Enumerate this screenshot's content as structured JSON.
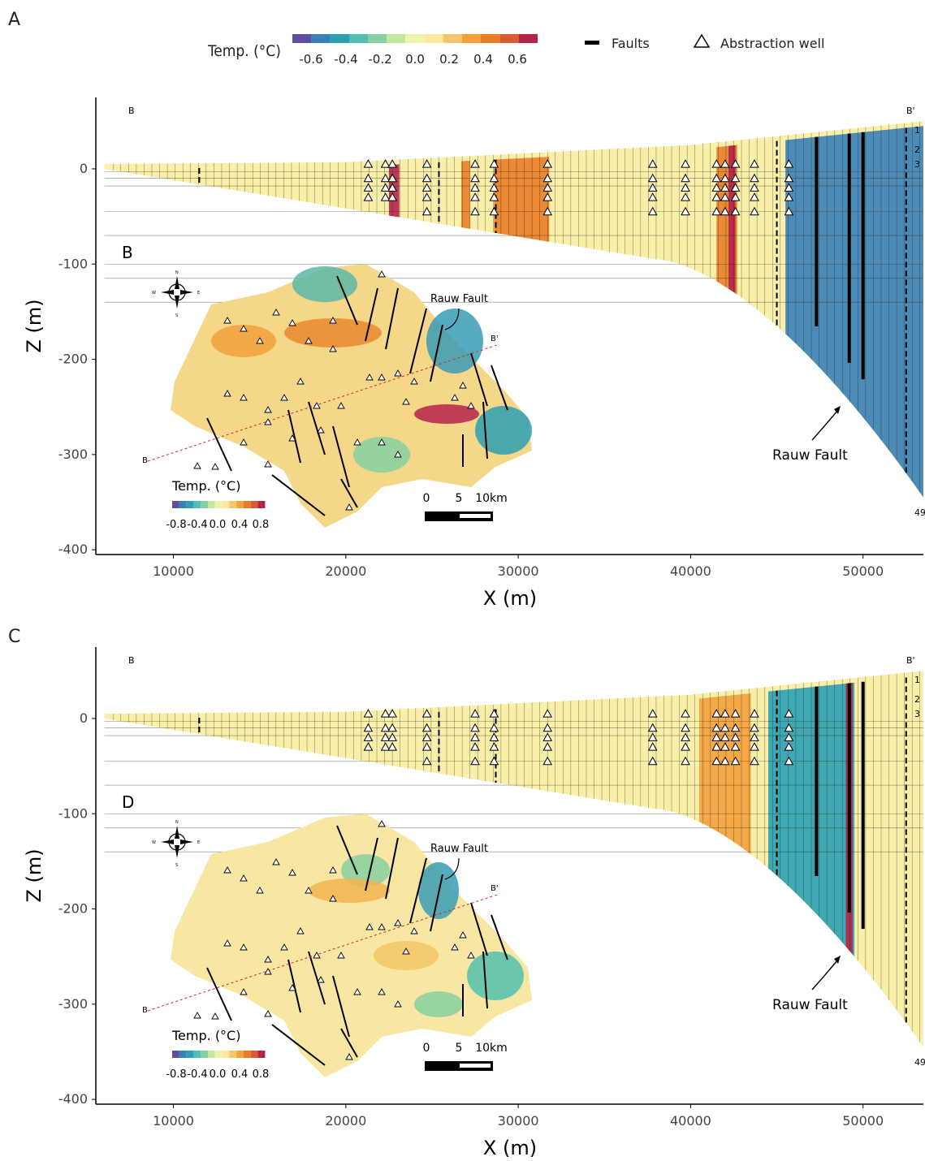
{
  "panels": {
    "a": "A",
    "b": "B",
    "c": "C",
    "d": "D"
  },
  "legend": {
    "temp_title": "Temp. (°C)",
    "temp_ticks": [
      "-0.6",
      "-0.4",
      "-0.2",
      "0.0",
      "0.2",
      "0.4",
      "0.6"
    ],
    "faults_label": "Faults",
    "well_label": "Abstraction well",
    "palette": [
      "#5d4f9f",
      "#3a7fb8",
      "#2ba0b3",
      "#53bfb0",
      "#86d0a2",
      "#c2e7a0",
      "#eef3b0",
      "#fae7a2",
      "#f8c66a",
      "#f2a13c",
      "#e97d27",
      "#d95b30",
      "#b5234b"
    ]
  },
  "inset_legend": {
    "title": "Temp. (°C)",
    "ticks": [
      "-0.8",
      "-0.4",
      "0.0",
      "0.4",
      "0.8"
    ]
  },
  "scalebar": {
    "ticks": [
      "0",
      "5",
      "10km"
    ]
  },
  "compass": {
    "n": "N",
    "s": "S",
    "e": "E",
    "w": "W"
  },
  "annotations": {
    "rauw_fault": "Rauw Fault",
    "section_start": "B",
    "section_end": "B'",
    "layer_labels": [
      "1",
      "2",
      "3",
      "49"
    ]
  },
  "chart_data": [
    {
      "type": "heatmap",
      "panel": "A",
      "xlabel": "X (m)",
      "ylabel": "Z (m)",
      "xlim": [
        5500,
        53500
      ],
      "ylim": [
        -405,
        75
      ],
      "x_ticks": [
        10000,
        20000,
        30000,
        40000,
        50000
      ],
      "y_ticks": [
        0,
        -100,
        -200,
        -300,
        -400
      ],
      "well_x": [
        21300,
        22300,
        22700,
        24700,
        27500,
        28600,
        31700,
        37800,
        39700,
        41500,
        42000,
        42600,
        43700,
        45700
      ],
      "fault_x": [
        47300,
        49200,
        50000
      ],
      "inset_fault_dashed_x": [
        11500,
        25400,
        28700,
        45000,
        52500
      ],
      "anomalies": [
        {
          "x": [
            22500,
            23100
          ],
          "value": 0.7
        },
        {
          "x": [
            26700,
            27200
          ],
          "value": 0.5
        },
        {
          "x": [
            28600,
            31800
          ],
          "value": 0.45
        },
        {
          "x": [
            41500,
            42700
          ],
          "value": 0.55
        },
        {
          "x": [
            42200,
            42600
          ],
          "value": 0.7
        },
        {
          "x": [
            45500,
            53500
          ],
          "value": -0.6
        }
      ]
    },
    {
      "type": "heatmap",
      "panel": "C",
      "xlabel": "X (m)",
      "ylabel": "Z (m)",
      "xlim": [
        5500,
        53500
      ],
      "ylim": [
        -405,
        75
      ],
      "x_ticks": [
        10000,
        20000,
        30000,
        40000,
        50000
      ],
      "y_ticks": [
        0,
        -100,
        -200,
        -300,
        -400
      ],
      "well_x": [
        21300,
        22300,
        22700,
        24700,
        27500,
        28600,
        31700,
        37800,
        39700,
        41500,
        42000,
        42600,
        43700,
        45700
      ],
      "fault_x": [
        47300,
        49200,
        50000
      ],
      "anomalies": [
        {
          "x": [
            40500,
            43500
          ],
          "value": 0.35
        },
        {
          "x": [
            44500,
            49500
          ],
          "value": -0.55
        },
        {
          "x": [
            49000,
            49400
          ],
          "value": 0.7
        }
      ]
    }
  ]
}
